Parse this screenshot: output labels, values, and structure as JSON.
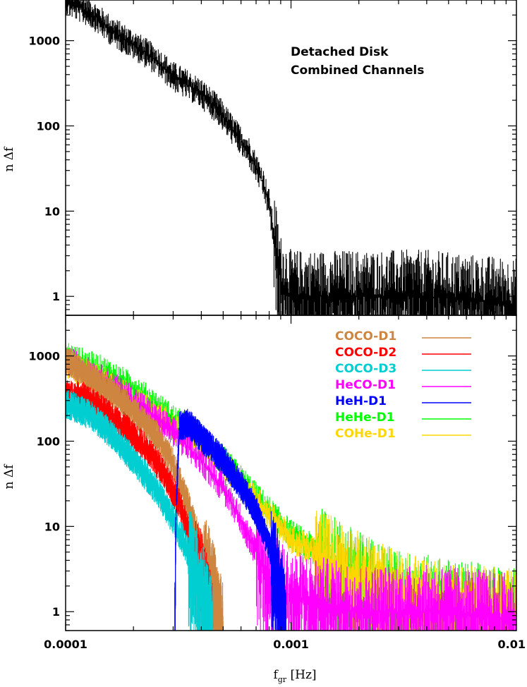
{
  "chart_data": [
    {
      "type": "line",
      "panel": "top",
      "annotation_lines": [
        "Detached Disk",
        "Combined Channels"
      ],
      "ylabel": "n Δf",
      "x_scale": "log",
      "y_scale": "log",
      "xlim": [
        0.0001,
        0.01
      ],
      "ylim": [
        0.6,
        3000
      ],
      "y_tick_labels": [
        "1000",
        "100",
        "10",
        "1"
      ],
      "y_ticks": [
        1000,
        100,
        10,
        1
      ],
      "series": [
        {
          "color": "#000000",
          "points": [
            [
              0.0001,
              3000
            ],
            [
              0.00013,
              2100
            ],
            [
              0.00016,
              1300
            ],
            [
              0.0002,
              900
            ],
            [
              0.00025,
              600
            ],
            [
              0.0003,
              380
            ],
            [
              0.00035,
              300
            ],
            [
              0.0004,
              240
            ],
            [
              0.00048,
              150
            ],
            [
              0.00055,
              90
            ],
            [
              0.00065,
              50
            ],
            [
              0.00075,
              22
            ],
            [
              0.0008,
              12
            ],
            [
              0.00085,
              4
            ],
            [
              0.0009,
              1.5
            ],
            [
              0.001,
              1
            ],
            [
              0.002,
              1
            ],
            [
              0.004,
              1
            ],
            [
              0.01,
              0.8
            ]
          ]
        }
      ]
    },
    {
      "type": "line",
      "panel": "bottom",
      "ylabel": "n Δf",
      "xlabel": "f_gr [Hz]",
      "x_scale": "log",
      "y_scale": "log",
      "xlim": [
        0.0001,
        0.01
      ],
      "ylim": [
        0.6,
        3000
      ],
      "x_ticks": [
        0.0001,
        0.001,
        0.01
      ],
      "x_tick_labels": [
        "0.0001",
        "0.001",
        "0.01"
      ],
      "y_tick_labels": [
        "1000",
        "100",
        "10",
        "1"
      ],
      "y_ticks": [
        1000,
        100,
        10,
        1
      ],
      "legend_position": "top-right",
      "series": [
        {
          "name": "COCO-D1",
          "color": "#cd853f",
          "points": [
            [
              0.0001,
              900
            ],
            [
              0.00015,
              420
            ],
            [
              0.0002,
              230
            ],
            [
              0.00025,
              120
            ],
            [
              0.0003,
              55
            ],
            [
              0.00035,
              18
            ],
            [
              0.0004,
              6
            ],
            [
              0.00045,
              2
            ],
            [
              0.0005,
              0.6
            ]
          ]
        },
        {
          "name": "COCO-D2",
          "color": "#ff0000",
          "points": [
            [
              0.0001,
              350
            ],
            [
              0.00012,
              330
            ],
            [
              0.00014,
              250
            ],
            [
              0.00018,
              150
            ],
            [
              0.00022,
              90
            ],
            [
              0.00027,
              45
            ],
            [
              0.00032,
              18
            ],
            [
              0.00037,
              6
            ],
            [
              0.00042,
              1.5
            ],
            [
              0.00045,
              0.6
            ]
          ]
        },
        {
          "name": "COCO-D3",
          "color": "#00ced1",
          "points": [
            [
              0.0001,
              280
            ],
            [
              0.00013,
              200
            ],
            [
              0.00016,
              120
            ],
            [
              0.0002,
              60
            ],
            [
              0.00025,
              28
            ],
            [
              0.0003,
              12
            ],
            [
              0.00035,
              5
            ],
            [
              0.0004,
              2
            ],
            [
              0.00045,
              0.6
            ]
          ]
        },
        {
          "name": "HeCO-D1",
          "color": "#ff00ff",
          "points": [
            [
              0.0001,
              900
            ],
            [
              0.00015,
              500
            ],
            [
              0.0002,
              300
            ],
            [
              0.0003,
              130
            ],
            [
              0.0004,
              60
            ],
            [
              0.0005,
              28
            ],
            [
              0.0006,
              12
            ],
            [
              0.0007,
              5
            ],
            [
              0.0008,
              2.5
            ],
            [
              0.001,
              1.5
            ],
            [
              0.002,
              1
            ],
            [
              0.005,
              1
            ],
            [
              0.01,
              0.8
            ]
          ]
        },
        {
          "name": "HeH-D1",
          "color": "#0000ff",
          "points": [
            [
              0.000305,
              0.6
            ],
            [
              0.00031,
              20
            ],
            [
              0.00032,
              150
            ],
            [
              0.00035,
              160
            ],
            [
              0.0004,
              110
            ],
            [
              0.0005,
              60
            ],
            [
              0.0006,
              30
            ],
            [
              0.0007,
              15
            ],
            [
              0.0008,
              6
            ],
            [
              0.0009,
              2
            ],
            [
              0.00095,
              0.6
            ]
          ]
        },
        {
          "name": "HeHe-D1",
          "color": "#00ff00",
          "points": [
            [
              0.0001,
              1000
            ],
            [
              0.00015,
              650
            ],
            [
              0.0002,
              420
            ],
            [
              0.0003,
              180
            ],
            [
              0.0004,
              110
            ],
            [
              0.0005,
              60
            ],
            [
              0.0006,
              35
            ],
            [
              0.0008,
              15
            ],
            [
              0.001,
              8
            ],
            [
              0.0015,
              4
            ],
            [
              0.002,
              2.5
            ],
            [
              0.003,
              1.5
            ],
            [
              0.005,
              1.2
            ],
            [
              0.01,
              0.9
            ]
          ]
        },
        {
          "name": "COHe-D1",
          "color": "#ffd700",
          "points": [
            [
              0.0001,
              800
            ],
            [
              0.00015,
              500
            ],
            [
              0.0002,
              300
            ],
            [
              0.0003,
              150
            ],
            [
              0.0004,
              90
            ],
            [
              0.0005,
              55
            ],
            [
              0.0006,
              30
            ],
            [
              0.0008,
              14
            ],
            [
              0.001,
              7
            ],
            [
              0.0015,
              4
            ],
            [
              0.002,
              2.5
            ],
            [
              0.003,
              1.5
            ],
            [
              0.005,
              1.1
            ],
            [
              0.01,
              0.9
            ]
          ]
        }
      ]
    }
  ]
}
